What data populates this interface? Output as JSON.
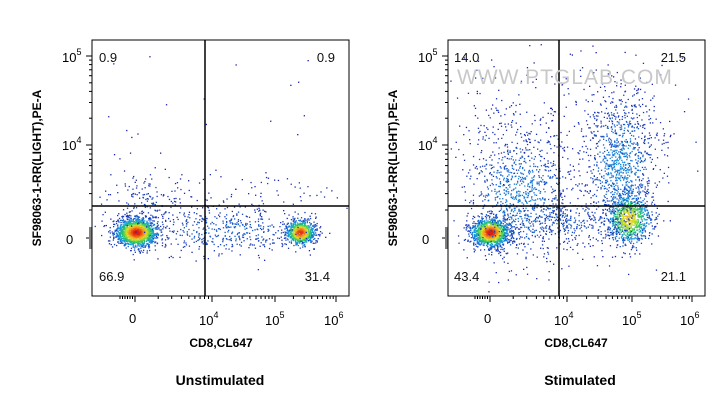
{
  "chart_data": [
    {
      "type": "scatter",
      "caption": "Unstimulated",
      "xlabel": "CD8,CL647",
      "ylabel": "SF98063-1-RR(LIGHT),PE-A",
      "x_ticks": [
        {
          "base": "0",
          "exp": ""
        },
        {
          "base": "10",
          "exp": "4"
        },
        {
          "base": "10",
          "exp": "5"
        },
        {
          "base": "10",
          "exp": "6"
        }
      ],
      "y_ticks": [
        {
          "base": "0",
          "exp": ""
        },
        {
          "base": "10",
          "exp": "4"
        },
        {
          "base": "10",
          "exp": "5"
        }
      ],
      "quadrants": {
        "top_left": "0.9",
        "top_right": "0.9",
        "bottom_left": "66.9",
        "bottom_right": "31.4"
      },
      "watermark": ""
    },
    {
      "type": "scatter",
      "caption": "Stimulated",
      "xlabel": "CD8,CL647",
      "ylabel": "SF98063-1-RR(LIGHT),PE-A",
      "x_ticks": [
        {
          "base": "0",
          "exp": ""
        },
        {
          "base": "10",
          "exp": "4"
        },
        {
          "base": "10",
          "exp": "5"
        },
        {
          "base": "10",
          "exp": "6"
        }
      ],
      "y_ticks": [
        {
          "base": "0",
          "exp": ""
        },
        {
          "base": "10",
          "exp": "4"
        },
        {
          "base": "10",
          "exp": "5"
        }
      ],
      "quadrants": {
        "top_left": "14.0",
        "top_right": "21.5",
        "bottom_left": "43.4",
        "bottom_right": "21.1"
      },
      "watermark": "WWW.PTGLAB.COM"
    }
  ]
}
